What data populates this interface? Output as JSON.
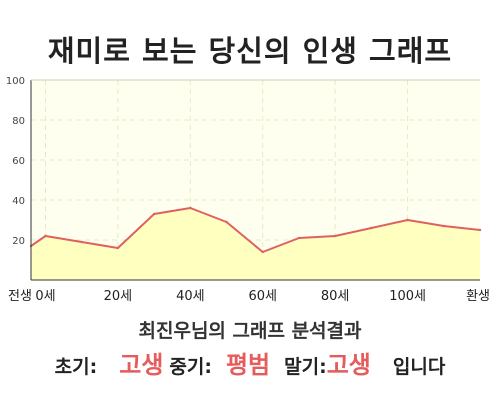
{
  "title": "재미로 보는 당신의 인생 그래프",
  "chart_data": {
    "type": "area",
    "x": [
      -4,
      0,
      10,
      20,
      30,
      40,
      50,
      60,
      70,
      80,
      90,
      100,
      110,
      120
    ],
    "y": [
      17,
      22,
      19,
      16,
      33,
      36,
      29,
      14,
      21,
      22,
      26,
      30,
      27,
      25
    ],
    "x_tick_labels": [
      {
        "x": -4,
        "label": "전생"
      },
      {
        "x": 0,
        "label": "0세"
      },
      {
        "x": 20,
        "label": "20세"
      },
      {
        "x": 40,
        "label": "40세"
      },
      {
        "x": 60,
        "label": "60세"
      },
      {
        "x": 80,
        "label": "80세"
      },
      {
        "x": 100,
        "label": "100세"
      },
      {
        "x": 120,
        "label": "환생"
      }
    ],
    "y_ticks": [
      20,
      40,
      60,
      80,
      100
    ],
    "ylim": [
      0,
      100
    ],
    "grid": true,
    "line_color": "#e06060",
    "fill_color": "#ffffc0",
    "plot_background": "#fffff0"
  },
  "summary": "최진우님의 그래프 분석결과",
  "result": {
    "early_label": "초기:",
    "early_value": "고생",
    "middle_label": "중기:",
    "middle_value": "평범",
    "late_label": "말기:",
    "late_value": "고생",
    "suffix": "입니다"
  }
}
